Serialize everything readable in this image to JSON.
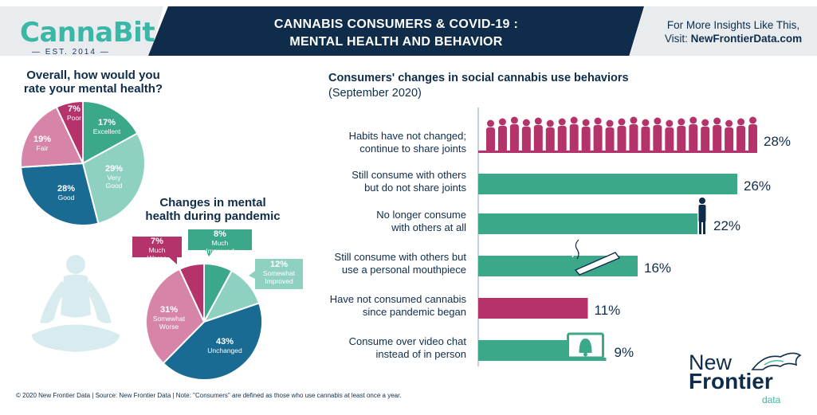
{
  "header": {
    "logo_name": "CannaBit",
    "logo_tagline": "— EST. 2014 —",
    "title_line1": "CANNABIS CONSUMERS  & COVID-19 :",
    "title_line2": "MENTAL HEALTH AND BEHAVIOR",
    "insights_line1": "For More Insights Like This,",
    "insights_line2_prefix": "Visit: ",
    "insights_link": "NewFrontierData.com"
  },
  "colors": {
    "navy": "#0f2d4a",
    "teal": "#3ab7a6",
    "light_teal": "#8ed1c1",
    "blue": "#1a6b93",
    "pink": "#d684a8",
    "magenta": "#b5336b",
    "bar_green": "#3aa889",
    "bar_magenta": "#b5336b"
  },
  "chart_data": [
    {
      "type": "pie",
      "title": "Overall, how would you rate your mental health?",
      "series": [
        {
          "label": "Excellent",
          "value": 17,
          "color": "#3aa889"
        },
        {
          "label": "Very Good",
          "value": 29,
          "color": "#8ed1c1"
        },
        {
          "label": "Good",
          "value": 28,
          "color": "#1a6b93"
        },
        {
          "label": "Fair",
          "value": 19,
          "color": "#d684a8"
        },
        {
          "label": "Poor",
          "value": 7,
          "color": "#b5336b"
        }
      ]
    },
    {
      "type": "pie",
      "title": "Changes in mental health during pandemic",
      "series": [
        {
          "label": "Much Improved",
          "value": 8,
          "color": "#3aa889"
        },
        {
          "label": "Somewhat Improved",
          "value": 12,
          "color": "#8ed1c1"
        },
        {
          "label": "Unchanged",
          "value": 43,
          "color": "#1a6b93"
        },
        {
          "label": "Somewhat Worse",
          "value": 31,
          "color": "#d684a8"
        },
        {
          "label": "Much Worse",
          "value": 7,
          "color": "#b5336b"
        }
      ]
    },
    {
      "type": "bar",
      "title": "Consumers' changes in social cannabis use behaviors",
      "subtitle": "(September 2020)",
      "categories": [
        "Habits have not changed; continue to share joints",
        "Still consume with others but do not share joints",
        "No longer consume with others at all",
        "Still consume with others but use a personal mouthpiece",
        "Have not consumed cannabis since pandemic began",
        "Consume over video chat instead of in person"
      ],
      "label_lines": [
        [
          "Habits have not changed;",
          "continue to share joints"
        ],
        [
          "Still consume with others",
          "but do not share joints"
        ],
        [
          "No longer consume",
          "with others at all"
        ],
        [
          "Still consume with others but",
          "use a personal mouthpiece"
        ],
        [
          "Have not consumed cannabis",
          "since pandemic began"
        ],
        [
          "Consume over video chat",
          "instead of in person"
        ]
      ],
      "values": [
        28,
        26,
        22,
        16,
        11,
        9
      ],
      "value_labels": [
        "28%",
        "26%",
        "22%",
        "16%",
        "11%",
        "9%"
      ],
      "bar_colors": [
        "#b5336b",
        "#3aa889",
        "#3aa889",
        "#3aa889",
        "#b5336b",
        "#3aa889"
      ],
      "icons": [
        "people-crowd-icon",
        "",
        "person-icon",
        "joint-icon",
        "",
        "laptop-bell-icon"
      ]
    }
  ],
  "footer": "© 2020  New Frontier Data | Source: New Frontier Data | Note: \"Consumers\" are defined as those who use cannabis at least once a year.",
  "brand": {
    "new": "New",
    "frontier": "Frontier",
    "data": "data"
  }
}
